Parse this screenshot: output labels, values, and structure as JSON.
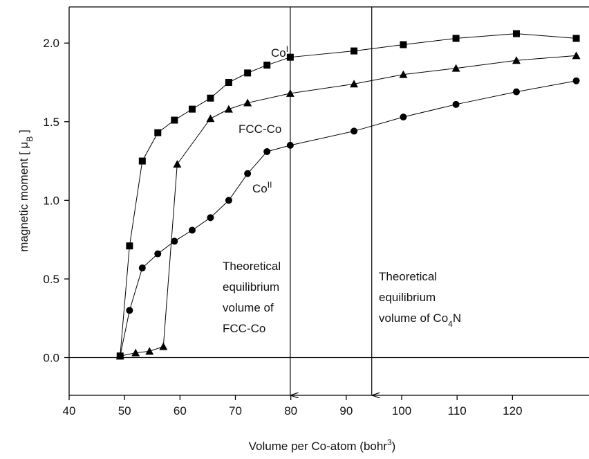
{
  "chart_data": {
    "type": "scatter",
    "x_label": [
      "Volume per Co-atom (bohr",
      "3",
      ")"
    ],
    "y_label": [
      "magnetic moment [ μ",
      "B",
      " ]"
    ],
    "xlim": [
      40,
      133.8
    ],
    "ylim": [
      -0.24,
      2.23
    ],
    "xticks": [
      40,
      50,
      60,
      70,
      80,
      90,
      100,
      110,
      120
    ],
    "yticks": [
      {
        "value": 0,
        "label": "0.0"
      },
      0.5,
      {
        "value": 1,
        "label": "1.0"
      },
      1.5,
      {
        "value": 2,
        "label": "2.0"
      }
    ],
    "series": [
      {
        "name": "Co",
        "name_sup": "I",
        "marker": "square",
        "color": "#000000",
        "x": [
          49.2,
          50.9,
          53.2,
          56.0,
          59.0,
          62.2,
          65.5,
          68.8,
          72.2,
          75.7,
          79.9,
          91.4,
          100.3,
          109.8,
          120.7,
          131.5
        ],
        "values": [
          0.01,
          0.71,
          1.25,
          1.43,
          1.51,
          1.58,
          1.65,
          1.75,
          1.81,
          1.86,
          1.91,
          1.95,
          1.99,
          2.03,
          2.06,
          2.03
        ]
      },
      {
        "name": "FCC-Co",
        "marker": "triangle",
        "color": "#000000",
        "x": [
          49.2,
          52.0,
          54.5,
          57.0,
          59.5,
          65.5,
          68.8,
          72.2,
          79.9,
          91.4,
          100.3,
          109.8,
          120.7,
          131.5
        ],
        "values": [
          0.01,
          0.03,
          0.04,
          0.07,
          1.23,
          1.52,
          1.58,
          1.62,
          1.68,
          1.74,
          1.8,
          1.84,
          1.89,
          1.92
        ]
      },
      {
        "name": "Co",
        "name_sup": "II",
        "marker": "circle",
        "color": "#000000",
        "x": [
          49.2,
          50.9,
          53.2,
          56.0,
          59.0,
          62.2,
          65.5,
          68.8,
          72.2,
          75.7,
          79.9,
          91.4,
          100.3,
          109.8,
          120.7,
          131.5
        ],
        "values": [
          0.01,
          0.3,
          0.57,
          0.66,
          0.74,
          0.81,
          0.89,
          1.0,
          1.17,
          1.31,
          1.35,
          1.44,
          1.53,
          1.61,
          1.69,
          1.76
        ]
      }
    ],
    "hline": 0,
    "arrows": [
      {
        "x": 79.9,
        "lines": [
          [
            "Theoretical"
          ],
          [
            "equilibrium"
          ],
          [
            "volume of"
          ],
          [
            "FCC-Co"
          ]
        ]
      },
      {
        "x": 94.6,
        "lines": [
          [
            "Theoretical"
          ],
          [
            "equilibrium"
          ],
          [
            "volume of Co",
            "4",
            "N"
          ]
        ]
      }
    ]
  }
}
